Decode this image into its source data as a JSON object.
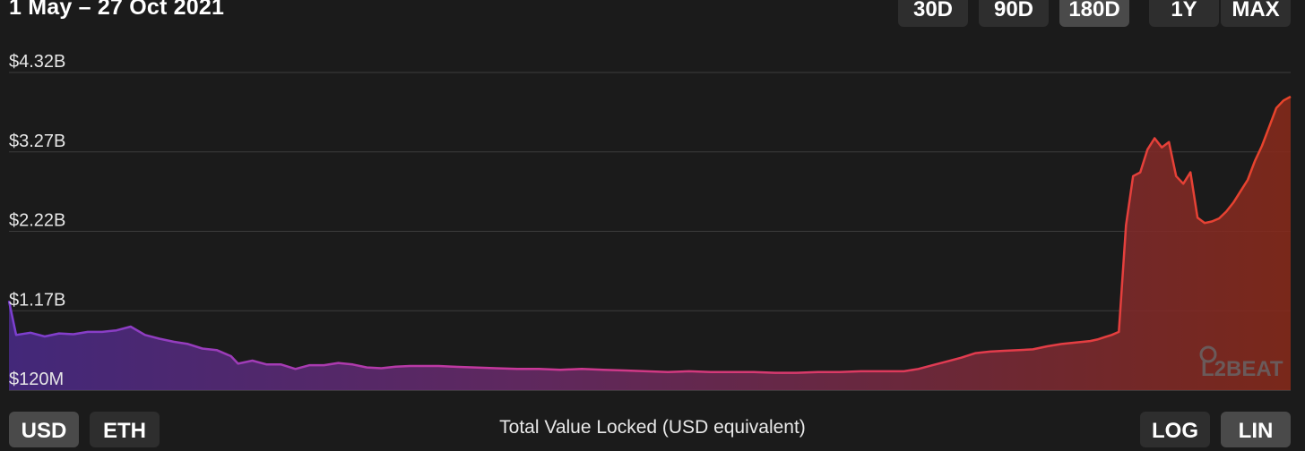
{
  "header": {
    "date_range": "1 May – 27 Oct 2021"
  },
  "range_buttons": [
    {
      "label": "30D",
      "active": false
    },
    {
      "label": "90D",
      "active": false
    },
    {
      "label": "180D",
      "active": true
    },
    {
      "label": "1Y",
      "active": false
    },
    {
      "label": "MAX",
      "active": false
    }
  ],
  "currency_buttons": [
    {
      "label": "USD",
      "active": true
    },
    {
      "label": "ETH",
      "active": false
    }
  ],
  "scale_buttons": [
    {
      "label": "LOG",
      "active": false
    },
    {
      "label": "LIN",
      "active": true
    }
  ],
  "watermark": {
    "text": "L2BEAT"
  },
  "chart_data": {
    "type": "area",
    "title": "Total Value Locked (USD equivalent)",
    "xlabel": "",
    "ylabel": "",
    "x_range": [
      "2021-05-01",
      "2021-10-27"
    ],
    "y_unit": "USD billions",
    "ylim": [
      0.12,
      4.32
    ],
    "yticks": [
      {
        "value": 0.12,
        "label": "$120M"
      },
      {
        "value": 1.17,
        "label": "$1.17B"
      },
      {
        "value": 2.22,
        "label": "$2.22B"
      },
      {
        "value": 3.27,
        "label": "$3.27B"
      },
      {
        "value": 4.32,
        "label": "$4.32B"
      }
    ],
    "grid": true,
    "gradient_colors": [
      "#7b3fd0",
      "#c9389a",
      "#e23b4e",
      "#e8442a"
    ],
    "series": [
      {
        "points": [
          [
            "2021-05-01",
            1.3
          ],
          [
            "2021-05-02",
            0.85
          ],
          [
            "2021-05-04",
            0.88
          ],
          [
            "2021-05-06",
            0.83
          ],
          [
            "2021-05-08",
            0.87
          ],
          [
            "2021-05-10",
            0.86
          ],
          [
            "2021-05-12",
            0.89
          ],
          [
            "2021-05-14",
            0.89
          ],
          [
            "2021-05-16",
            0.91
          ],
          [
            "2021-05-18",
            0.96
          ],
          [
            "2021-05-20",
            0.85
          ],
          [
            "2021-05-22",
            0.8
          ],
          [
            "2021-05-24",
            0.76
          ],
          [
            "2021-05-26",
            0.73
          ],
          [
            "2021-05-28",
            0.67
          ],
          [
            "2021-05-30",
            0.65
          ],
          [
            "2021-06-01",
            0.57
          ],
          [
            "2021-06-02",
            0.47
          ],
          [
            "2021-06-04",
            0.51
          ],
          [
            "2021-06-06",
            0.46
          ],
          [
            "2021-06-08",
            0.46
          ],
          [
            "2021-06-10",
            0.4
          ],
          [
            "2021-06-12",
            0.45
          ],
          [
            "2021-06-14",
            0.45
          ],
          [
            "2021-06-16",
            0.48
          ],
          [
            "2021-06-18",
            0.46
          ],
          [
            "2021-06-20",
            0.42
          ],
          [
            "2021-06-22",
            0.41
          ],
          [
            "2021-06-24",
            0.43
          ],
          [
            "2021-06-26",
            0.44
          ],
          [
            "2021-06-28",
            0.44
          ],
          [
            "2021-06-30",
            0.44
          ],
          [
            "2021-07-02",
            0.43
          ],
          [
            "2021-07-05",
            0.42
          ],
          [
            "2021-07-08",
            0.41
          ],
          [
            "2021-07-11",
            0.4
          ],
          [
            "2021-07-14",
            0.4
          ],
          [
            "2021-07-17",
            0.39
          ],
          [
            "2021-07-20",
            0.4
          ],
          [
            "2021-07-23",
            0.39
          ],
          [
            "2021-07-26",
            0.38
          ],
          [
            "2021-07-29",
            0.37
          ],
          [
            "2021-08-01",
            0.36
          ],
          [
            "2021-08-04",
            0.37
          ],
          [
            "2021-08-07",
            0.36
          ],
          [
            "2021-08-10",
            0.36
          ],
          [
            "2021-08-13",
            0.36
          ],
          [
            "2021-08-16",
            0.35
          ],
          [
            "2021-08-19",
            0.35
          ],
          [
            "2021-08-22",
            0.36
          ],
          [
            "2021-08-25",
            0.36
          ],
          [
            "2021-08-28",
            0.37
          ],
          [
            "2021-08-31",
            0.37
          ],
          [
            "2021-09-03",
            0.37
          ],
          [
            "2021-09-05",
            0.4
          ],
          [
            "2021-09-07",
            0.45
          ],
          [
            "2021-09-09",
            0.5
          ],
          [
            "2021-09-11",
            0.55
          ],
          [
            "2021-09-13",
            0.61
          ],
          [
            "2021-09-15",
            0.63
          ],
          [
            "2021-09-17",
            0.64
          ],
          [
            "2021-09-19",
            0.65
          ],
          [
            "2021-09-21",
            0.66
          ],
          [
            "2021-09-23",
            0.7
          ],
          [
            "2021-09-25",
            0.73
          ],
          [
            "2021-09-27",
            0.75
          ],
          [
            "2021-09-29",
            0.77
          ],
          [
            "2021-09-30",
            0.79
          ],
          [
            "2021-10-01",
            0.82
          ],
          [
            "2021-10-02",
            0.85
          ],
          [
            "2021-10-03",
            0.89
          ],
          [
            "2021-10-04",
            2.3
          ],
          [
            "2021-10-05",
            2.95
          ],
          [
            "2021-10-06",
            3.0
          ],
          [
            "2021-10-07",
            3.3
          ],
          [
            "2021-10-08",
            3.45
          ],
          [
            "2021-10-09",
            3.33
          ],
          [
            "2021-10-10",
            3.4
          ],
          [
            "2021-10-11",
            2.95
          ],
          [
            "2021-10-12",
            2.85
          ],
          [
            "2021-10-13",
            3.0
          ],
          [
            "2021-10-14",
            2.4
          ],
          [
            "2021-10-15",
            2.33
          ],
          [
            "2021-10-16",
            2.35
          ],
          [
            "2021-10-17",
            2.39
          ],
          [
            "2021-10-18",
            2.48
          ],
          [
            "2021-10-19",
            2.6
          ],
          [
            "2021-10-20",
            2.75
          ],
          [
            "2021-10-21",
            2.9
          ],
          [
            "2021-10-22",
            3.15
          ],
          [
            "2021-10-23",
            3.35
          ],
          [
            "2021-10-24",
            3.6
          ],
          [
            "2021-10-25",
            3.85
          ],
          [
            "2021-10-26",
            3.95
          ],
          [
            "2021-10-27",
            4.0
          ]
        ]
      }
    ]
  }
}
